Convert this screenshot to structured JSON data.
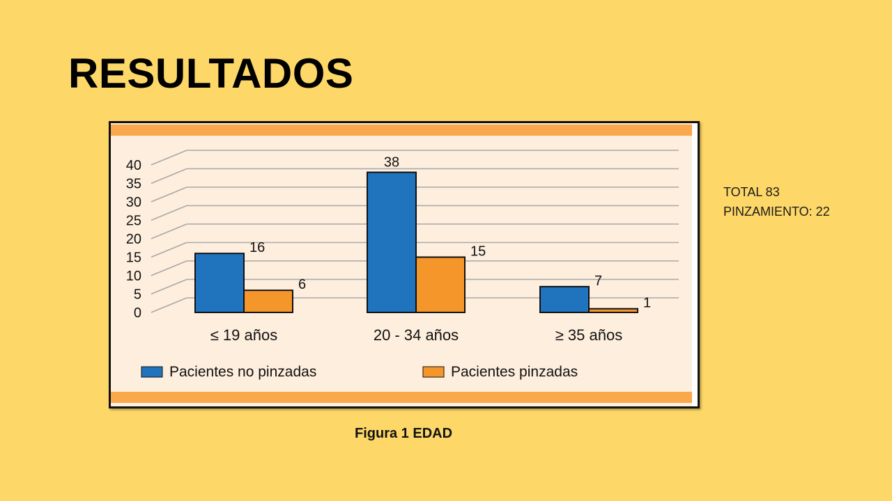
{
  "slide": {
    "title": "RESULTADOS",
    "background_color": "#fdd767"
  },
  "notes": {
    "total": "TOTAL 83",
    "pinzamiento": "PINZAMIENTO: 22"
  },
  "caption": "Figura 1 EDAD",
  "chart_data": {
    "type": "bar",
    "title": "",
    "xlabel": "",
    "ylabel": "",
    "categories": [
      "≤ 19 años",
      "20 - 34 años",
      "≥ 35 años"
    ],
    "series": [
      {
        "name": "Pacientes no pinzadas",
        "values": [
          16,
          38,
          7
        ],
        "color": "#1f74bd"
      },
      {
        "name": "Pacientes pinzadas",
        "values": [
          6,
          15,
          1
        ],
        "color": "#f4962a"
      }
    ],
    "y_ticks": [
      "0",
      "5",
      "10",
      "15",
      "20",
      "25",
      "30",
      "35",
      "40"
    ],
    "ylim": [
      0,
      40
    ],
    "grid": true,
    "legend_position": "bottom",
    "band_color": "#f9a94c",
    "plot_background": "#fdeedd"
  }
}
